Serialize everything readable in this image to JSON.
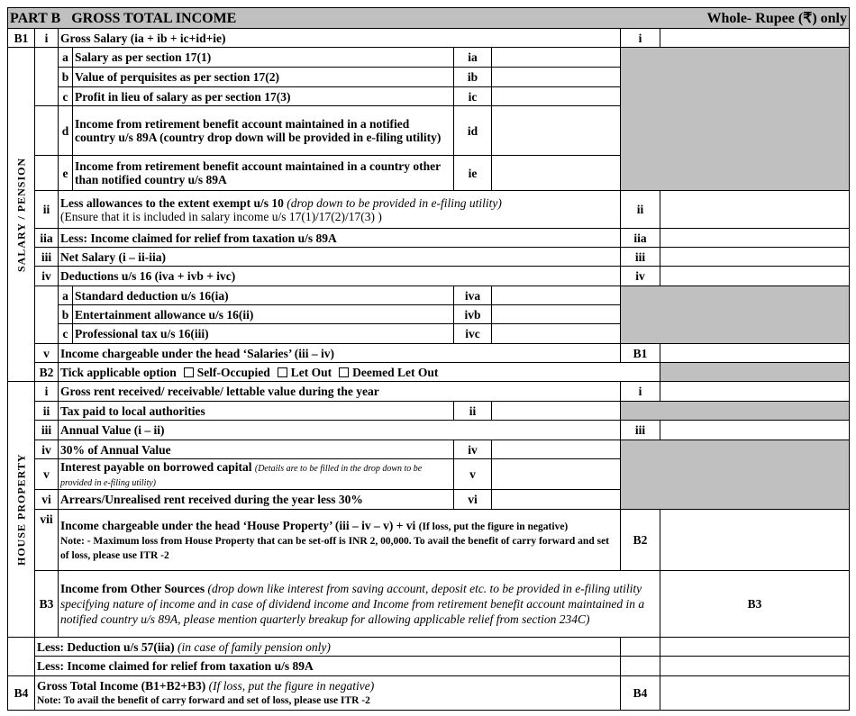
{
  "header": {
    "title": "PART B   GROSS TOTAL INCOME",
    "currency_note": "Whole- Rupee (₹) only"
  },
  "b1": {
    "code": "B1",
    "roman": "i",
    "label": "Gross Salary  (ia + ib + ic+id+ie)",
    "ref": "i",
    "section_label": "SALARY / PENSION",
    "sub": [
      {
        "letter": "a",
        "label": "Salary as per section 17(1)",
        "code": "ia"
      },
      {
        "letter": "b",
        "label": "Value of perquisites as per section 17(2)",
        "code": "ib"
      },
      {
        "letter": "c",
        "label": "Profit in lieu of salary as per section 17(3)",
        "code": "ic"
      },
      {
        "letter": "d",
        "label": "Income from retirement benefit account maintained in a notified country u/s 89A (country drop down will be provided in e-filing utility)",
        "code": "id"
      },
      {
        "letter": "e",
        "label": "Income from retirement benefit account maintained in a country other than notified country u/s 89A",
        "code": "ie"
      }
    ],
    "ii": {
      "roman": "ii",
      "label": "Less allowances to the extent exempt u/s 10",
      "note": "(drop down to be provided in e-filing utility)",
      "ensure": "(Ensure that it is included in salary income u/s 17(1)/17(2)/17(3) )",
      "ref": "ii"
    },
    "iia": {
      "roman": "iia",
      "label": "Less: Income claimed for relief from taxation u/s 89A",
      "ref": "iia"
    },
    "iii": {
      "roman": "iii",
      "label": "Net Salary (i – ii-iia)",
      "ref": "iii"
    },
    "iv": {
      "roman": "iv",
      "label": "Deductions u/s 16  (iva + ivb + ivc)",
      "ref": "iv"
    },
    "deductions": [
      {
        "letter": "a",
        "label": "Standard deduction u/s 16(ia)",
        "code": "iva"
      },
      {
        "letter": "b",
        "label": "Entertainment allowance u/s 16(ii)",
        "code": "ivb"
      },
      {
        "letter": "c",
        "label": "Professional tax u/s 16(iii)",
        "code": "ivc"
      }
    ],
    "v": {
      "roman": "v",
      "label": "Income chargeable under the head ‘Salaries’  (iii – iv)",
      "ref": "B1"
    }
  },
  "b2": {
    "code": "B2",
    "label": "Tick applicable option",
    "options": [
      "Self-Occupied",
      "Let Out",
      "Deemed Let Out"
    ],
    "section_label": "HOUSE PROPERTY",
    "i": {
      "roman": "i",
      "label": "Gross rent received/ receivable/ lettable value during the year",
      "ref": "i"
    },
    "ii": {
      "roman": "ii",
      "label": "Tax paid to local authorities",
      "code": "ii"
    },
    "iii": {
      "roman": "iii",
      "label": "Annual Value (i – ii)",
      "ref": "iii"
    },
    "iv": {
      "roman": "iv",
      "label": "30% of Annual Value",
      "code": "iv"
    },
    "v": {
      "roman": "v",
      "label": "Interest payable on borrowed capital",
      "note": "(Details are to be filled in the drop down to be provided in e-filing utility)",
      "code": "v"
    },
    "vi": {
      "roman": "vi",
      "label": "Arrears/Unrealised rent received during the year less 30%",
      "code": "vi"
    },
    "vii": {
      "roman": "vii",
      "label": "Income chargeable under the head ‘House Property’ (iii – iv – v) + vi",
      "label_note": "(If loss, put the figure in negative)",
      "note": "Note: - Maximum loss from House Property that can be set-off is INR 2, 00,000. To avail the benefit of carry forward and set of loss, please use ITR -2",
      "ref": "B2"
    }
  },
  "b3": {
    "code": "B3",
    "label": "Income from Other Sources",
    "note": "(drop down like interest from saving account, deposit etc. to be provided in e-filing utility specifying nature of income and in case of dividend income and Income from retirement benefit account maintained in a notified country u/s 89A, please mention quarterly breakup for allowing applicable relief from section 234C)",
    "ref": "B3",
    "less1": {
      "label": "Less: Deduction u/s 57(iia)",
      "note": "(in case of family pension only)"
    },
    "less2": {
      "label": "Less:  Income claimed for relief from taxation u/s 89A"
    }
  },
  "b4": {
    "code": "B4",
    "label": "Gross Total Income (B1+B2+B3)",
    "label_note": "(If loss, put the figure in negative)",
    "note": "Note: To avail the benefit of carry forward and set of loss, please use ITR -2",
    "ref": "B4"
  }
}
